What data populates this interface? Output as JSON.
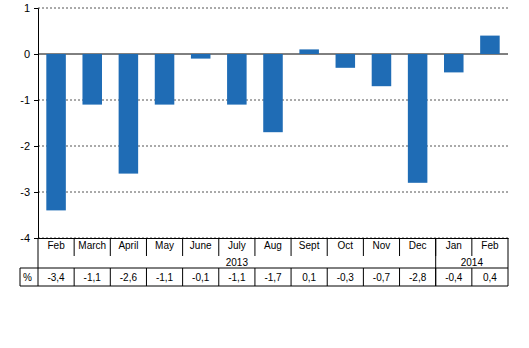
{
  "chart_data": {
    "type": "bar",
    "categories": [
      "Feb",
      "March",
      "April",
      "May",
      "June",
      "July",
      "Aug",
      "Sept",
      "Oct",
      "Nov",
      "Dec",
      "Jan",
      "Feb"
    ],
    "values": [
      -3.4,
      -1.1,
      -2.6,
      -1.1,
      -0.1,
      -1.1,
      -1.7,
      0.1,
      -0.3,
      -0.7,
      -2.8,
      -0.4,
      0.4
    ],
    "value_labels": [
      "-3,4",
      "-1,1",
      "-2,6",
      "-1,1",
      "-0,1",
      "-1,1",
      "-1,7",
      "0,1",
      "-0,3",
      "-0,7",
      "-2,8",
      "-0,4",
      "0,4"
    ],
    "value_labels_header": "%",
    "x_groups": [
      {
        "label": "2013",
        "count": 11
      },
      {
        "label": "2014",
        "count": 2
      }
    ],
    "color": "#1f6cb5",
    "ylim": [
      -4,
      1
    ],
    "yticks": [
      -4,
      -3,
      -2,
      -1,
      0,
      1
    ],
    "grid": true
  }
}
